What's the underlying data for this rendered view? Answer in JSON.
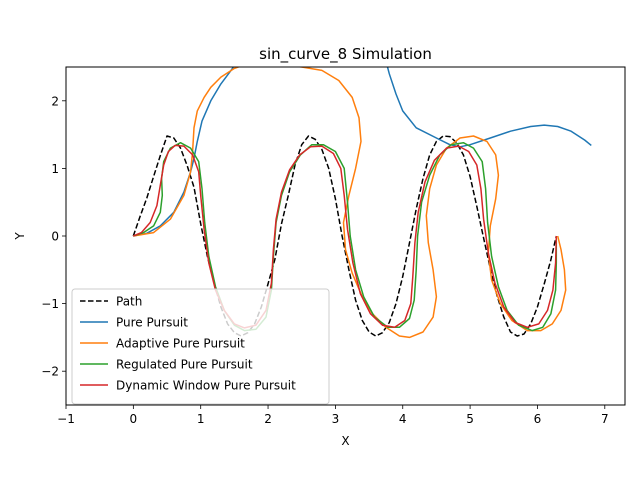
{
  "chart_data": {
    "type": "line",
    "title": "sin_curve_8 Simulation",
    "xlabel": "X",
    "ylabel": "Y",
    "xlim": [
      -1,
      7.3
    ],
    "ylim": [
      -2.5,
      2.5
    ],
    "xticks": [
      "−1",
      "0",
      "1",
      "2",
      "3",
      "4",
      "5",
      "6",
      "7"
    ],
    "xtick_values": [
      -1,
      0,
      1,
      2,
      3,
      4,
      5,
      6,
      7
    ],
    "yticks": [
      "−2",
      "−1",
      "0",
      "1",
      "2"
    ],
    "ytick_values": [
      -2,
      -1,
      0,
      1,
      2
    ],
    "grid": false,
    "legend_position": "lower-left",
    "series": [
      {
        "name": "Path",
        "color": "#000000",
        "dash": "dashed",
        "points": [
          [
            0,
            0
          ],
          [
            0.1,
            0.29
          ],
          [
            0.2,
            0.56
          ],
          [
            0.3,
            0.88
          ],
          [
            0.4,
            1.19
          ],
          [
            0.5,
            1.48
          ],
          [
            0.6,
            1.45
          ],
          [
            0.7,
            1.3
          ],
          [
            0.8,
            1.04
          ],
          [
            0.9,
            0.72
          ],
          [
            1.0,
            0.18
          ],
          [
            1.1,
            -0.3
          ],
          [
            1.2,
            -0.7
          ],
          [
            1.3,
            -1.05
          ],
          [
            1.4,
            -1.3
          ],
          [
            1.5,
            -1.43
          ],
          [
            1.6,
            -1.48
          ],
          [
            1.7,
            -1.43
          ],
          [
            1.8,
            -1.3
          ],
          [
            1.9,
            -1.05
          ],
          [
            2.0,
            -0.71
          ],
          [
            2.1,
            -0.35
          ],
          [
            2.2,
            0.18
          ],
          [
            2.3,
            0.6
          ],
          [
            2.4,
            1.05
          ],
          [
            2.5,
            1.35
          ],
          [
            2.6,
            1.48
          ],
          [
            2.7,
            1.43
          ],
          [
            2.8,
            1.28
          ],
          [
            2.9,
            1.0
          ],
          [
            3.0,
            0.55
          ],
          [
            3.1,
            0.0
          ],
          [
            3.2,
            -0.5
          ],
          [
            3.3,
            -0.95
          ],
          [
            3.4,
            -1.25
          ],
          [
            3.5,
            -1.42
          ],
          [
            3.6,
            -1.48
          ],
          [
            3.7,
            -1.43
          ],
          [
            3.8,
            -1.28
          ],
          [
            3.9,
            -1.0
          ],
          [
            4.0,
            -0.6
          ],
          [
            4.1,
            -0.1
          ],
          [
            4.2,
            0.4
          ],
          [
            4.3,
            0.85
          ],
          [
            4.4,
            1.2
          ],
          [
            4.5,
            1.4
          ],
          [
            4.6,
            1.48
          ],
          [
            4.7,
            1.47
          ],
          [
            4.8,
            1.38
          ],
          [
            4.9,
            1.2
          ],
          [
            5.0,
            0.88
          ],
          [
            5.1,
            0.44
          ],
          [
            5.2,
            -0.03
          ],
          [
            5.3,
            -0.48
          ],
          [
            5.4,
            -0.88
          ],
          [
            5.5,
            -1.2
          ],
          [
            5.6,
            -1.42
          ],
          [
            5.7,
            -1.48
          ],
          [
            5.8,
            -1.45
          ],
          [
            5.9,
            -1.3
          ],
          [
            6.0,
            -1.05
          ],
          [
            6.1,
            -0.71
          ],
          [
            6.2,
            -0.35
          ],
          [
            6.28,
            0.0
          ]
        ]
      },
      {
        "name": "Pure Pursuit",
        "color": "#1f77b4",
        "dash": "solid",
        "points": [
          [
            0,
            0
          ],
          [
            0.2,
            0.04
          ],
          [
            0.4,
            0.15
          ],
          [
            0.6,
            0.35
          ],
          [
            0.75,
            0.65
          ],
          [
            0.85,
            0.95
          ],
          [
            0.9,
            1.15
          ],
          [
            0.95,
            1.4
          ],
          [
            1.02,
            1.7
          ],
          [
            1.15,
            2.0
          ],
          [
            1.3,
            2.25
          ],
          [
            1.45,
            2.45
          ],
          [
            1.52,
            2.55
          ],
          [
            3.76,
            2.55
          ],
          [
            3.8,
            2.4
          ],
          [
            3.9,
            2.1
          ],
          [
            4.0,
            1.85
          ],
          [
            4.2,
            1.6
          ],
          [
            4.5,
            1.45
          ],
          [
            4.7,
            1.35
          ],
          [
            4.85,
            1.32
          ],
          [
            5.0,
            1.35
          ],
          [
            5.3,
            1.45
          ],
          [
            5.6,
            1.55
          ],
          [
            5.9,
            1.62
          ],
          [
            6.1,
            1.64
          ],
          [
            6.3,
            1.62
          ],
          [
            6.5,
            1.55
          ],
          [
            6.7,
            1.42
          ],
          [
            6.8,
            1.34
          ]
        ]
      },
      {
        "name": "Adaptive Pure Pursuit",
        "color": "#ff7f0e",
        "dash": "solid",
        "points": [
          [
            0,
            0
          ],
          [
            0.3,
            0.05
          ],
          [
            0.55,
            0.25
          ],
          [
            0.75,
            0.6
          ],
          [
            0.85,
            0.95
          ],
          [
            0.88,
            1.25
          ],
          [
            0.9,
            1.6
          ],
          [
            0.95,
            1.85
          ],
          [
            1.05,
            2.05
          ],
          [
            1.15,
            2.2
          ],
          [
            1.3,
            2.35
          ],
          [
            1.5,
            2.48
          ],
          [
            1.7,
            2.55
          ],
          [
            2.1,
            2.55
          ],
          [
            2.5,
            2.5
          ],
          [
            2.8,
            2.45
          ],
          [
            3.05,
            2.3
          ],
          [
            3.25,
            2.05
          ],
          [
            3.35,
            1.75
          ],
          [
            3.38,
            1.4
          ],
          [
            3.3,
            1.0
          ],
          [
            3.2,
            0.6
          ],
          [
            3.12,
            0.2
          ],
          [
            3.15,
            -0.2
          ],
          [
            3.25,
            -0.55
          ],
          [
            3.4,
            -0.9
          ],
          [
            3.55,
            -1.15
          ],
          [
            3.75,
            -1.35
          ],
          [
            3.95,
            -1.48
          ],
          [
            4.1,
            -1.5
          ],
          [
            4.3,
            -1.42
          ],
          [
            4.45,
            -1.2
          ],
          [
            4.5,
            -0.9
          ],
          [
            4.45,
            -0.5
          ],
          [
            4.38,
            -0.1
          ],
          [
            4.35,
            0.3
          ],
          [
            4.4,
            0.7
          ],
          [
            4.5,
            1.05
          ],
          [
            4.65,
            1.3
          ],
          [
            4.85,
            1.45
          ],
          [
            5.05,
            1.48
          ],
          [
            5.25,
            1.4
          ],
          [
            5.38,
            1.2
          ],
          [
            5.42,
            0.9
          ],
          [
            5.38,
            0.55
          ],
          [
            5.3,
            0.15
          ],
          [
            5.27,
            -0.25
          ],
          [
            5.32,
            -0.65
          ],
          [
            5.45,
            -1.0
          ],
          [
            5.62,
            -1.25
          ],
          [
            5.85,
            -1.4
          ],
          [
            6.05,
            -1.4
          ],
          [
            6.22,
            -1.3
          ],
          [
            6.35,
            -1.1
          ],
          [
            6.42,
            -0.8
          ],
          [
            6.4,
            -0.5
          ],
          [
            6.35,
            -0.2
          ],
          [
            6.3,
            0.0
          ]
        ]
      },
      {
        "name": "Regulated Pure Pursuit",
        "color": "#2ca02c",
        "dash": "solid",
        "points": [
          [
            0,
            0
          ],
          [
            0.15,
            0.05
          ],
          [
            0.3,
            0.15
          ],
          [
            0.4,
            0.35
          ],
          [
            0.43,
            0.6
          ],
          [
            0.42,
            0.85
          ],
          [
            0.45,
            1.1
          ],
          [
            0.55,
            1.3
          ],
          [
            0.7,
            1.38
          ],
          [
            0.85,
            1.3
          ],
          [
            0.97,
            1.1
          ],
          [
            1.02,
            0.7
          ],
          [
            1.06,
            0.2
          ],
          [
            1.12,
            -0.3
          ],
          [
            1.22,
            -0.75
          ],
          [
            1.35,
            -1.1
          ],
          [
            1.5,
            -1.32
          ],
          [
            1.65,
            -1.4
          ],
          [
            1.82,
            -1.38
          ],
          [
            1.97,
            -1.2
          ],
          [
            2.05,
            -0.8
          ],
          [
            2.08,
            -0.3
          ],
          [
            2.12,
            0.2
          ],
          [
            2.2,
            0.6
          ],
          [
            2.32,
            0.95
          ],
          [
            2.48,
            1.2
          ],
          [
            2.65,
            1.35
          ],
          [
            2.82,
            1.35
          ],
          [
            3.0,
            1.25
          ],
          [
            3.13,
            1.0
          ],
          [
            3.18,
            0.5
          ],
          [
            3.22,
            0.0
          ],
          [
            3.3,
            -0.5
          ],
          [
            3.42,
            -0.9
          ],
          [
            3.58,
            -1.2
          ],
          [
            3.78,
            -1.35
          ],
          [
            3.95,
            -1.35
          ],
          [
            4.1,
            -1.22
          ],
          [
            4.17,
            -0.95
          ],
          [
            4.2,
            -0.5
          ],
          [
            4.22,
            0.0
          ],
          [
            4.28,
            0.5
          ],
          [
            4.4,
            0.9
          ],
          [
            4.55,
            1.2
          ],
          [
            4.72,
            1.35
          ],
          [
            4.9,
            1.38
          ],
          [
            5.05,
            1.3
          ],
          [
            5.18,
            1.1
          ],
          [
            5.23,
            0.7
          ],
          [
            5.26,
            0.2
          ],
          [
            5.32,
            -0.3
          ],
          [
            5.42,
            -0.75
          ],
          [
            5.55,
            -1.1
          ],
          [
            5.72,
            -1.32
          ],
          [
            5.92,
            -1.4
          ],
          [
            6.08,
            -1.35
          ],
          [
            6.2,
            -1.15
          ],
          [
            6.27,
            -0.8
          ],
          [
            6.28,
            -0.4
          ],
          [
            6.28,
            0.0
          ]
        ]
      },
      {
        "name": "Dynamic Window Pure Pursuit",
        "color": "#d62728",
        "dash": "solid",
        "points": [
          [
            0,
            0
          ],
          [
            0.12,
            0.05
          ],
          [
            0.25,
            0.2
          ],
          [
            0.35,
            0.45
          ],
          [
            0.4,
            0.75
          ],
          [
            0.45,
            1.05
          ],
          [
            0.52,
            1.25
          ],
          [
            0.62,
            1.34
          ],
          [
            0.75,
            1.33
          ],
          [
            0.88,
            1.2
          ],
          [
            0.97,
            0.95
          ],
          [
            1.0,
            0.6
          ],
          [
            1.05,
            0.1
          ],
          [
            1.12,
            -0.4
          ],
          [
            1.22,
            -0.8
          ],
          [
            1.35,
            -1.1
          ],
          [
            1.5,
            -1.3
          ],
          [
            1.65,
            -1.36
          ],
          [
            1.82,
            -1.32
          ],
          [
            1.97,
            -1.1
          ],
          [
            2.05,
            -0.7
          ],
          [
            2.08,
            -0.2
          ],
          [
            2.12,
            0.25
          ],
          [
            2.2,
            0.65
          ],
          [
            2.32,
            0.98
          ],
          [
            2.47,
            1.2
          ],
          [
            2.63,
            1.32
          ],
          [
            2.8,
            1.33
          ],
          [
            2.97,
            1.22
          ],
          [
            3.08,
            1.0
          ],
          [
            3.13,
            0.6
          ],
          [
            3.18,
            0.1
          ],
          [
            3.26,
            -0.4
          ],
          [
            3.37,
            -0.85
          ],
          [
            3.52,
            -1.15
          ],
          [
            3.7,
            -1.32
          ],
          [
            3.88,
            -1.35
          ],
          [
            4.03,
            -1.25
          ],
          [
            4.12,
            -1.0
          ],
          [
            4.15,
            -0.6
          ],
          [
            4.18,
            -0.1
          ],
          [
            4.23,
            0.35
          ],
          [
            4.33,
            0.8
          ],
          [
            4.47,
            1.12
          ],
          [
            4.65,
            1.3
          ],
          [
            4.83,
            1.33
          ],
          [
            4.98,
            1.25
          ],
          [
            5.1,
            1.05
          ],
          [
            5.16,
            0.7
          ],
          [
            5.2,
            0.25
          ],
          [
            5.27,
            -0.25
          ],
          [
            5.37,
            -0.7
          ],
          [
            5.5,
            -1.05
          ],
          [
            5.67,
            -1.28
          ],
          [
            5.85,
            -1.35
          ],
          [
            6.02,
            -1.3
          ],
          [
            6.15,
            -1.1
          ],
          [
            6.23,
            -0.8
          ],
          [
            6.27,
            -0.4
          ],
          [
            6.28,
            0.0
          ]
        ]
      }
    ]
  }
}
